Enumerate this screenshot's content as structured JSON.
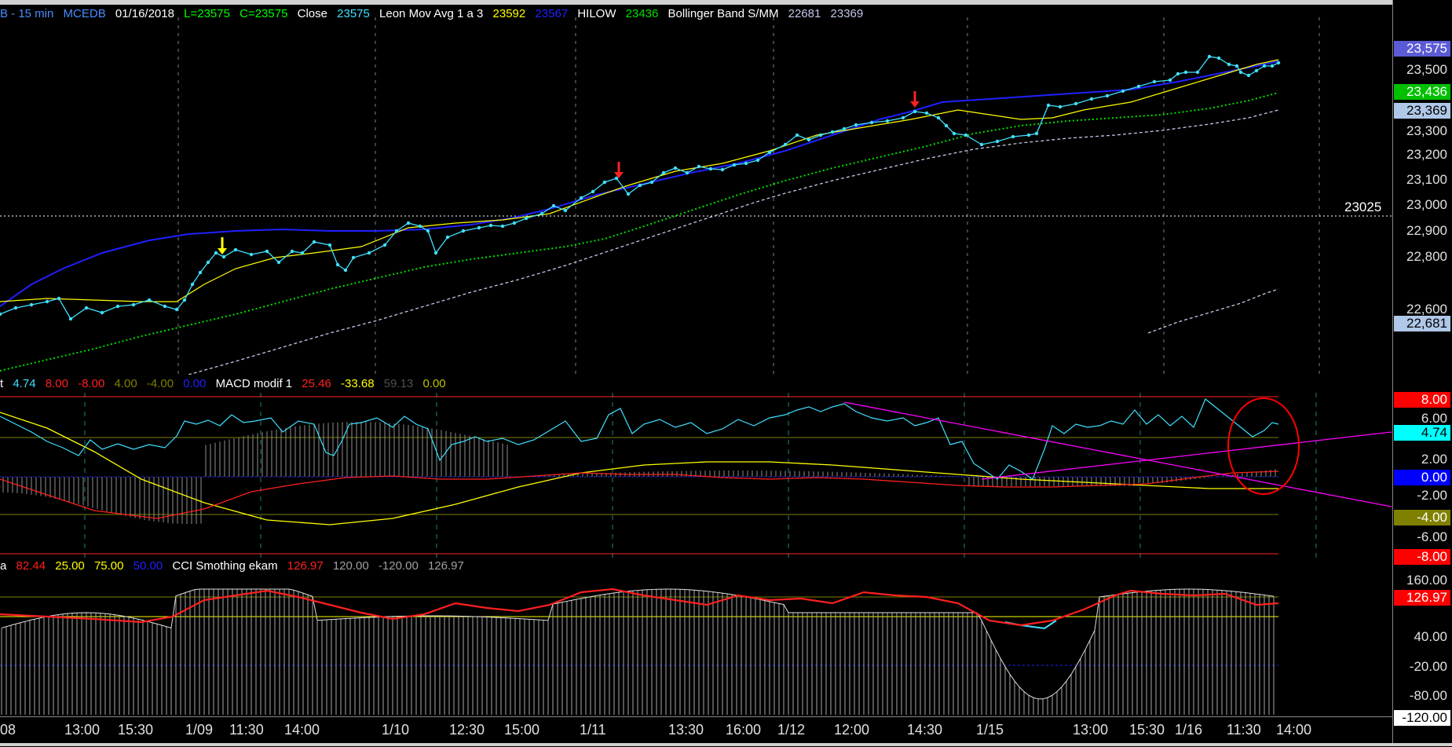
{
  "price_header": {
    "symbol": "B - 15 min",
    "exchange": "MCEDB",
    "date": "01/16/2018",
    "low": "L=23575",
    "close_eq": "C=23575",
    "close_label": "Close",
    "close_val": "23575",
    "mov_avg_label": "Leon Mov Avg 1 a 3",
    "mov_avg_val1": "23592",
    "mov_avg_val2": "23567",
    "hilow_label": "HILOW",
    "hilow_val": "23436",
    "bb_label": "Bollinger Band S/MM",
    "bb_val1": "22681",
    "bb_val2": "23369"
  },
  "macd_header": {
    "prefix": "t",
    "v1": "4.74",
    "v2": "8.00",
    "v3": "-8.00",
    "v4": "4.00",
    "v5": "-4.00",
    "v6": "0.00",
    "label": "MACD modif 1",
    "v7": "25.46",
    "v8": "-33.68",
    "v9": "59.13",
    "v10": "0.00"
  },
  "cci_header": {
    "prefix": "a",
    "v1": "82.44",
    "v2": "25.00",
    "v3": "75.00",
    "v4": "50.00",
    "label": "CCI Smothing ekam",
    "v5": "126.97",
    "v6": "120.00",
    "v7": "-120.00",
    "v8": "126.97"
  },
  "reference_line_label": "23025",
  "price_axis": {
    "ticks": [
      "23,500",
      "23,300",
      "23,200",
      "23,100",
      "23,000",
      "22,900",
      "22,800",
      "22,600"
    ],
    "badges": [
      {
        "text": "23,575",
        "bg": "#5b5bd6",
        "fg": "#ffffff"
      },
      {
        "text": "23,436",
        "bg": "#00c000",
        "fg": "#ffffff"
      },
      {
        "text": "23,369",
        "bg": "#b0c8e8",
        "fg": "#000000"
      },
      {
        "text": "22,681",
        "bg": "#b0c8e8",
        "fg": "#000000"
      }
    ]
  },
  "macd_axis": {
    "ticks": [
      "6.00",
      "2.00",
      "-2.00",
      "-6.00"
    ],
    "badges": [
      {
        "text": "8.00",
        "bg": "#ff0000",
        "fg": "#ffffff"
      },
      {
        "text": "4.74",
        "bg": "#00ffff",
        "fg": "#000000"
      },
      {
        "text": "0.00",
        "bg": "#0000ff",
        "fg": "#ffffff"
      },
      {
        "text": "-4.00",
        "bg": "#808000",
        "fg": "#ffffff"
      },
      {
        "text": "-8.00",
        "bg": "#ff0000",
        "fg": "#ffffff"
      }
    ]
  },
  "cci_axis": {
    "ticks": [
      "160.00",
      "40.00",
      "-20.00",
      "-80.00"
    ],
    "badges": [
      {
        "text": "126.97",
        "bg": "#ff0000",
        "fg": "#ffffff"
      },
      {
        "text": "-120.00",
        "bg": "#ffffff",
        "fg": "#000000"
      }
    ]
  },
  "time_axis": [
    "08",
    "13:00",
    "15:30",
    "1/09",
    "11:30",
    "14:00",
    "1/10",
    "12:30",
    "15:00",
    "1/11",
    "13:30",
    "16:00",
    "1/12",
    "12:00",
    "14:30",
    "1/15",
    "13:00",
    "15:30",
    "1/16",
    "11:30",
    "14:00"
  ],
  "colors": {
    "price_line": "#40e0ff",
    "mov_avg_fast": "#ffff00",
    "mov_avg_slow": "#2020ff",
    "hilow": "#00e000",
    "bollinger": "#c0c8e8",
    "macd_line": "#40e0ff",
    "signal": "#ffff00",
    "red_line": "#ff0000",
    "trendline": "#ff00ff"
  }
}
